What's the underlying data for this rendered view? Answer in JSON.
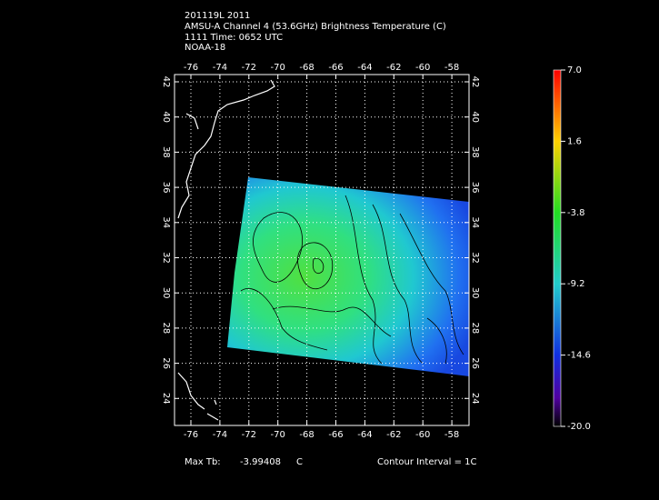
{
  "header": {
    "lines": [
      "201119L 2011",
      "AMSU-A Channel 4 (53.6GHz) Brightness Temperature (C)",
      "1111 Time: 0652 UTC",
      "NOAA-18"
    ]
  },
  "map": {
    "lon_ticks": [
      "-76",
      "-74",
      "-72",
      "-70",
      "-68",
      "-66",
      "-64",
      "-62",
      "-60",
      "-58"
    ],
    "lat_ticks": [
      "42",
      "40",
      "38",
      "36",
      "34",
      "32",
      "30",
      "28",
      "26",
      "24"
    ]
  },
  "colorbar": {
    "ticks": [
      "7.0",
      "1.6",
      "-3.8",
      "-9.2",
      "-14.6",
      "-20.0"
    ]
  },
  "footer": {
    "max_label": "Max Tb:",
    "max_value": "-3.99408",
    "max_unit": "C",
    "contour": "Contour Interval = 1C"
  }
}
